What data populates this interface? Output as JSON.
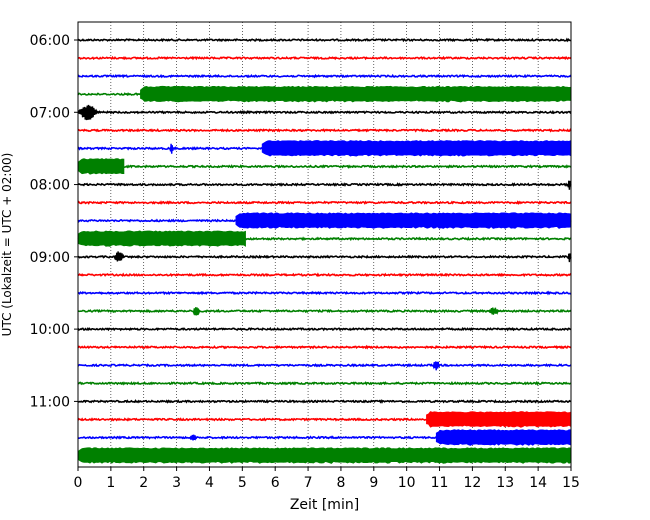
{
  "chart_data": {
    "type": "line",
    "title": "",
    "xlabel": "Zeit  [min]",
    "ylabel": "UTC (Lokalzeit = UTC + 02:00)",
    "xlim": [
      0,
      15
    ],
    "x_ticks": [
      0,
      1,
      2,
      3,
      4,
      5,
      6,
      7,
      8,
      9,
      10,
      11,
      12,
      13,
      14,
      15
    ],
    "y_tick_labels": [
      "06:00",
      "07:00",
      "08:00",
      "09:00",
      "10:00",
      "11:00"
    ],
    "vertical_grid": "dotted",
    "trace_interval_min": 15,
    "trace_colors": [
      "#000000",
      "#ff0000",
      "#0000ff",
      "#008000"
    ],
    "traces": [
      {
        "start": "06:00",
        "color": "#000000",
        "events": []
      },
      {
        "start": "06:15",
        "color": "#ff0000",
        "events": []
      },
      {
        "start": "06:30",
        "color": "#0000ff",
        "events": []
      },
      {
        "start": "06:45",
        "color": "#008000",
        "events": [
          {
            "from": 1.9,
            "to": 15,
            "amplitude": "high"
          }
        ]
      },
      {
        "start": "07:00",
        "color": "#000000",
        "events": [
          {
            "from": 0,
            "to": 0.6,
            "amplitude": "high"
          }
        ]
      },
      {
        "start": "07:15",
        "color": "#ff0000",
        "events": []
      },
      {
        "start": "07:30",
        "color": "#0000ff",
        "events": [
          {
            "from": 2.8,
            "to": 2.9,
            "amplitude": "medium"
          },
          {
            "from": 5.6,
            "to": 15,
            "amplitude": "high"
          }
        ]
      },
      {
        "start": "07:45",
        "color": "#008000",
        "events": [
          {
            "from": 0,
            "to": 1.4,
            "amplitude": "high"
          }
        ]
      },
      {
        "start": "08:00",
        "color": "#000000",
        "events": [
          {
            "from": 14.9,
            "to": 15,
            "amplitude": "medium"
          }
        ]
      },
      {
        "start": "08:15",
        "color": "#ff0000",
        "events": []
      },
      {
        "start": "08:30",
        "color": "#0000ff",
        "events": [
          {
            "from": 4.8,
            "to": 15,
            "amplitude": "high"
          }
        ]
      },
      {
        "start": "08:45",
        "color": "#008000",
        "events": [
          {
            "from": 0,
            "to": 5.1,
            "amplitude": "high"
          }
        ]
      },
      {
        "start": "09:00",
        "color": "#000000",
        "events": [
          {
            "from": 1.1,
            "to": 1.4,
            "amplitude": "medium"
          },
          {
            "from": 14.9,
            "to": 15,
            "amplitude": "medium"
          }
        ]
      },
      {
        "start": "09:15",
        "color": "#ff0000",
        "events": []
      },
      {
        "start": "09:30",
        "color": "#0000ff",
        "events": []
      },
      {
        "start": "09:45",
        "color": "#008000",
        "events": [
          {
            "from": 3.5,
            "to": 3.7,
            "amplitude": "medium"
          },
          {
            "from": 12.5,
            "to": 12.8,
            "amplitude": "low"
          }
        ]
      },
      {
        "start": "10:00",
        "color": "#000000",
        "events": []
      },
      {
        "start": "10:15",
        "color": "#ff0000",
        "events": []
      },
      {
        "start": "10:30",
        "color": "#0000ff",
        "events": [
          {
            "from": 10.8,
            "to": 11.0,
            "amplitude": "medium"
          }
        ]
      },
      {
        "start": "10:45",
        "color": "#008000",
        "events": []
      },
      {
        "start": "11:00",
        "color": "#000000",
        "events": []
      },
      {
        "start": "11:15",
        "color": "#ff0000",
        "events": [
          {
            "from": 10.6,
            "to": 15,
            "amplitude": "high"
          }
        ]
      },
      {
        "start": "11:30",
        "color": "#0000ff",
        "events": [
          {
            "from": 3.4,
            "to": 3.6,
            "amplitude": "low"
          },
          {
            "from": 10.9,
            "to": 15,
            "amplitude": "high"
          }
        ]
      },
      {
        "start": "11:45",
        "color": "#008000",
        "events": [
          {
            "from": 0,
            "to": 15,
            "amplitude": "high"
          }
        ]
      }
    ]
  }
}
